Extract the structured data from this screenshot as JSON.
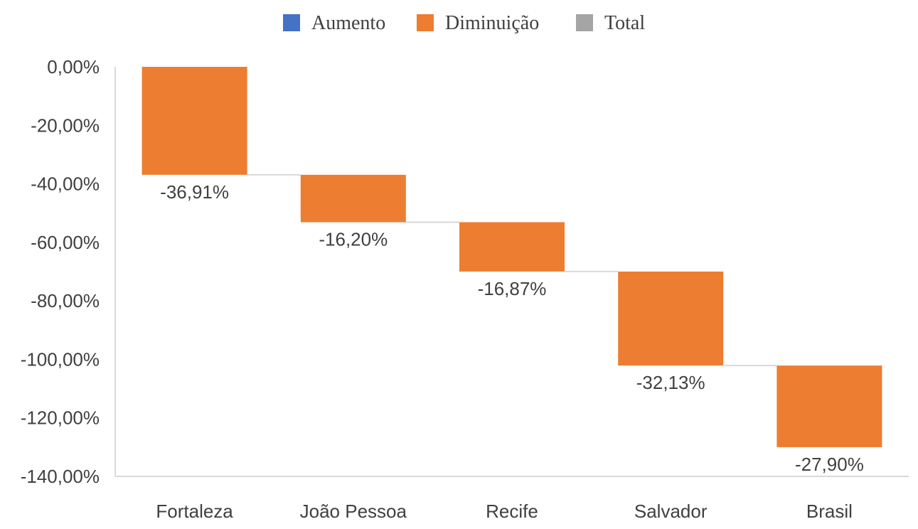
{
  "legend": {
    "items": [
      {
        "label": "Aumento",
        "color": "#4472C4"
      },
      {
        "label": "Diminuição",
        "color": "#ED7D31"
      },
      {
        "label": "Total",
        "color": "#A5A5A5"
      }
    ]
  },
  "chart_data": {
    "type": "bar",
    "subtype": "waterfall",
    "categories": [
      "Fortaleza",
      "João Pessoa",
      "Recife",
      "Salvador",
      "Brasil"
    ],
    "values": [
      -36.91,
      -16.2,
      -16.87,
      -32.13,
      -27.9
    ],
    "data_labels": [
      "-36,91%",
      "-16,20%",
      "-16,87%",
      "-32,13%",
      "-27,90%"
    ],
    "ylim": [
      -140,
      0
    ],
    "yticks": [
      0,
      -20,
      -40,
      -60,
      -80,
      -100,
      -120,
      -140
    ],
    "ytick_labels": [
      "0,00%",
      "-20,00%",
      "-40,00%",
      "-60,00%",
      "-80,00%",
      "-100,00%",
      "-120,00%",
      "-140,00%"
    ],
    "legend_position": "top",
    "grid": false,
    "bar_color": "#ED7D31",
    "connector_color": "#D9D9D9",
    "axis_color": "#D9D9D9"
  }
}
